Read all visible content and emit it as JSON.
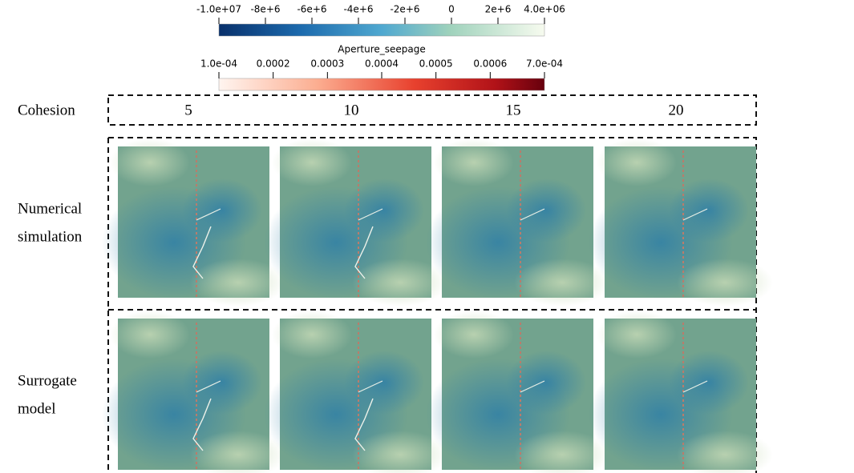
{
  "colorbars": [
    {
      "ticks": [
        {
          "value": -10000000,
          "label": "-1.0e+07"
        },
        {
          "value": -8000000,
          "label": "-8e+6"
        },
        {
          "value": -6000000,
          "label": "-6e+6"
        },
        {
          "value": -4000000,
          "label": "-4e+6"
        },
        {
          "value": -2000000,
          "label": "-2e+6"
        },
        {
          "value": 0,
          "label": "0"
        },
        {
          "value": 2000000,
          "label": "2e+6"
        },
        {
          "value": 4000000,
          "label": "4.0e+06"
        }
      ]
    },
    {
      "title": "Aperture_seepage",
      "ticks": [
        {
          "value": 0.0001,
          "label": "1.0e-04"
        },
        {
          "value": 0.0002,
          "label": "0.0002"
        },
        {
          "value": 0.0003,
          "label": "0.0003"
        },
        {
          "value": 0.0004,
          "label": "0.0004"
        },
        {
          "value": 0.0005,
          "label": "0.0005"
        },
        {
          "value": 0.0006,
          "label": "0.0006"
        },
        {
          "value": 0.0007,
          "label": "7.0e-04"
        }
      ]
    }
  ],
  "table": {
    "header_label": "Cohesion",
    "columns": [
      "5",
      "10",
      "15",
      "20"
    ],
    "rows": [
      [
        "Numerical",
        "simulation"
      ],
      [
        "Surrogate",
        "model"
      ]
    ]
  }
}
